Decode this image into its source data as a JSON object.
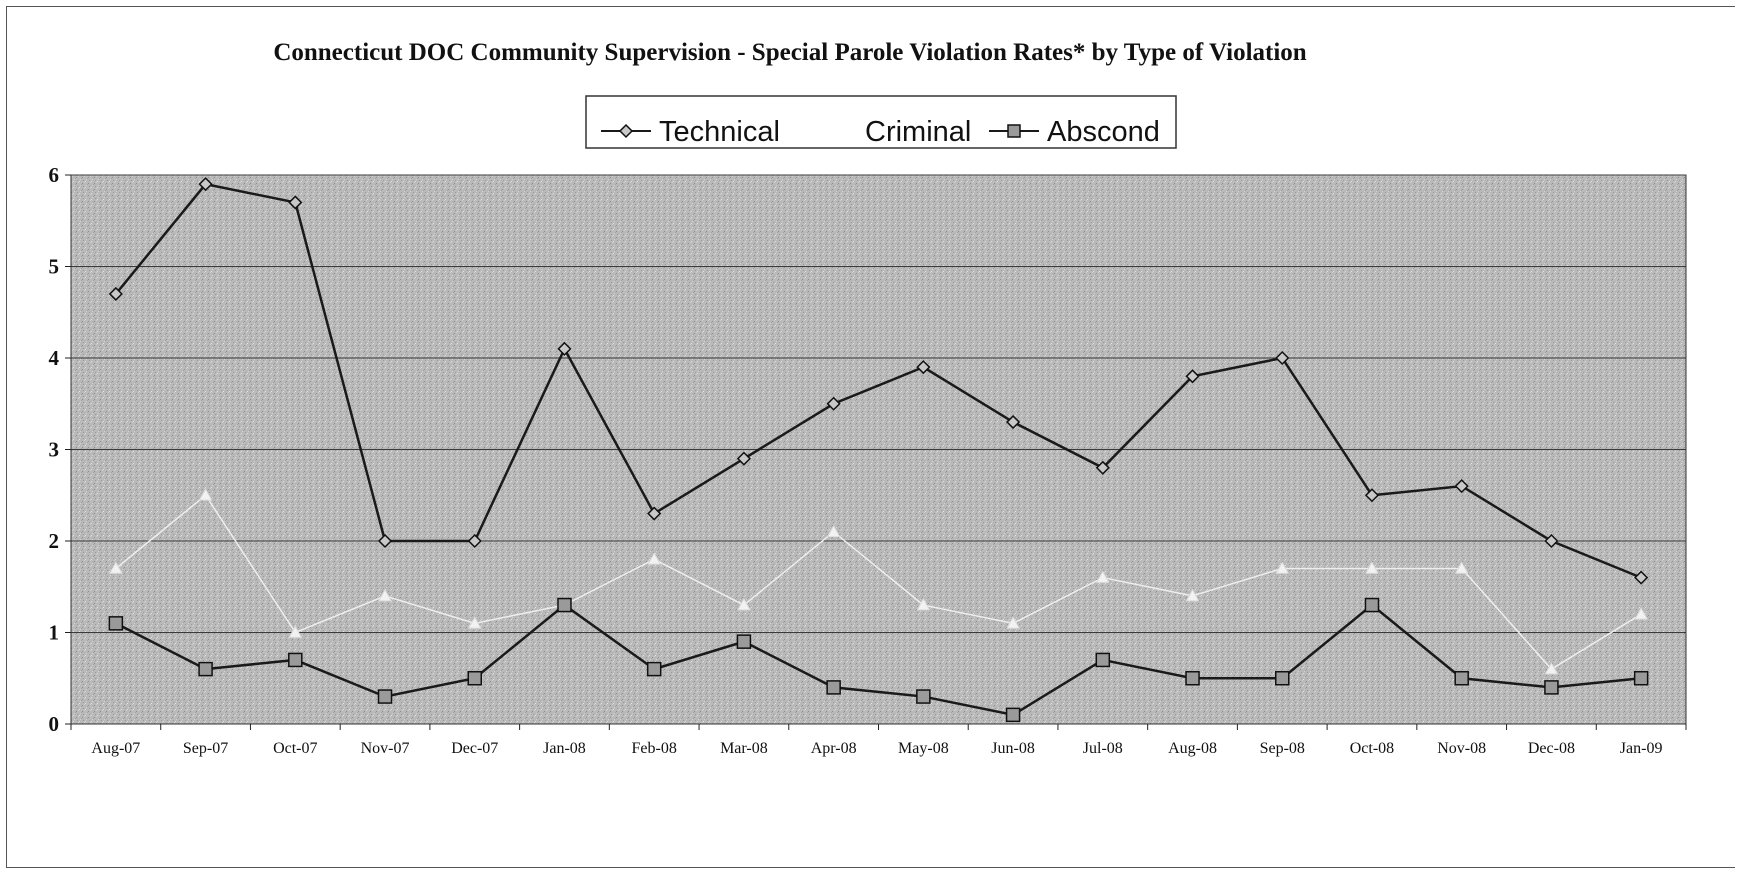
{
  "chart_data": {
    "type": "line",
    "title": "Connecticut DOC Community Supervision -  Special Parole Violation Rates* by Type of Violation",
    "categories": [
      "Aug-07",
      "Sep-07",
      "Oct-07",
      "Nov-07",
      "Dec-07",
      "Jan-08",
      "Feb-08",
      "Mar-08",
      "Apr-08",
      "May-08",
      "Jun-08",
      "Jul-08",
      "Aug-08",
      "Sep-08",
      "Oct-08",
      "Nov-08",
      "Dec-08",
      "Jan-09"
    ],
    "series": [
      {
        "name": "Technical",
        "marker": "diamond",
        "color": "#1a1a1a",
        "values": [
          4.7,
          5.9,
          5.7,
          2.0,
          2.0,
          4.1,
          2.3,
          2.9,
          3.5,
          3.9,
          3.3,
          2.8,
          3.8,
          4.0,
          2.5,
          2.6,
          2.0,
          1.6
        ]
      },
      {
        "name": "Criminal",
        "marker": "triangle",
        "color": "#eeeeee",
        "values": [
          1.7,
          2.5,
          1.0,
          1.4,
          1.1,
          1.3,
          1.8,
          1.3,
          2.1,
          1.3,
          1.1,
          1.6,
          1.4,
          1.7,
          1.7,
          1.7,
          0.6,
          1.2
        ]
      },
      {
        "name": "Abscond",
        "marker": "square",
        "color": "#1a1a1a",
        "values": [
          1.1,
          0.6,
          0.7,
          0.3,
          0.5,
          1.3,
          0.6,
          0.9,
          0.4,
          0.3,
          0.1,
          0.7,
          0.5,
          0.5,
          1.3,
          0.5,
          0.4,
          0.5
        ]
      }
    ],
    "yticks": [
      "0",
      "1",
      "2",
      "3",
      "4",
      "5",
      "6"
    ],
    "ylim": [
      0,
      6
    ],
    "xlabel": "",
    "ylabel": "",
    "grid": true,
    "legend": "top-center",
    "plot_background": "#b8b8b8"
  }
}
